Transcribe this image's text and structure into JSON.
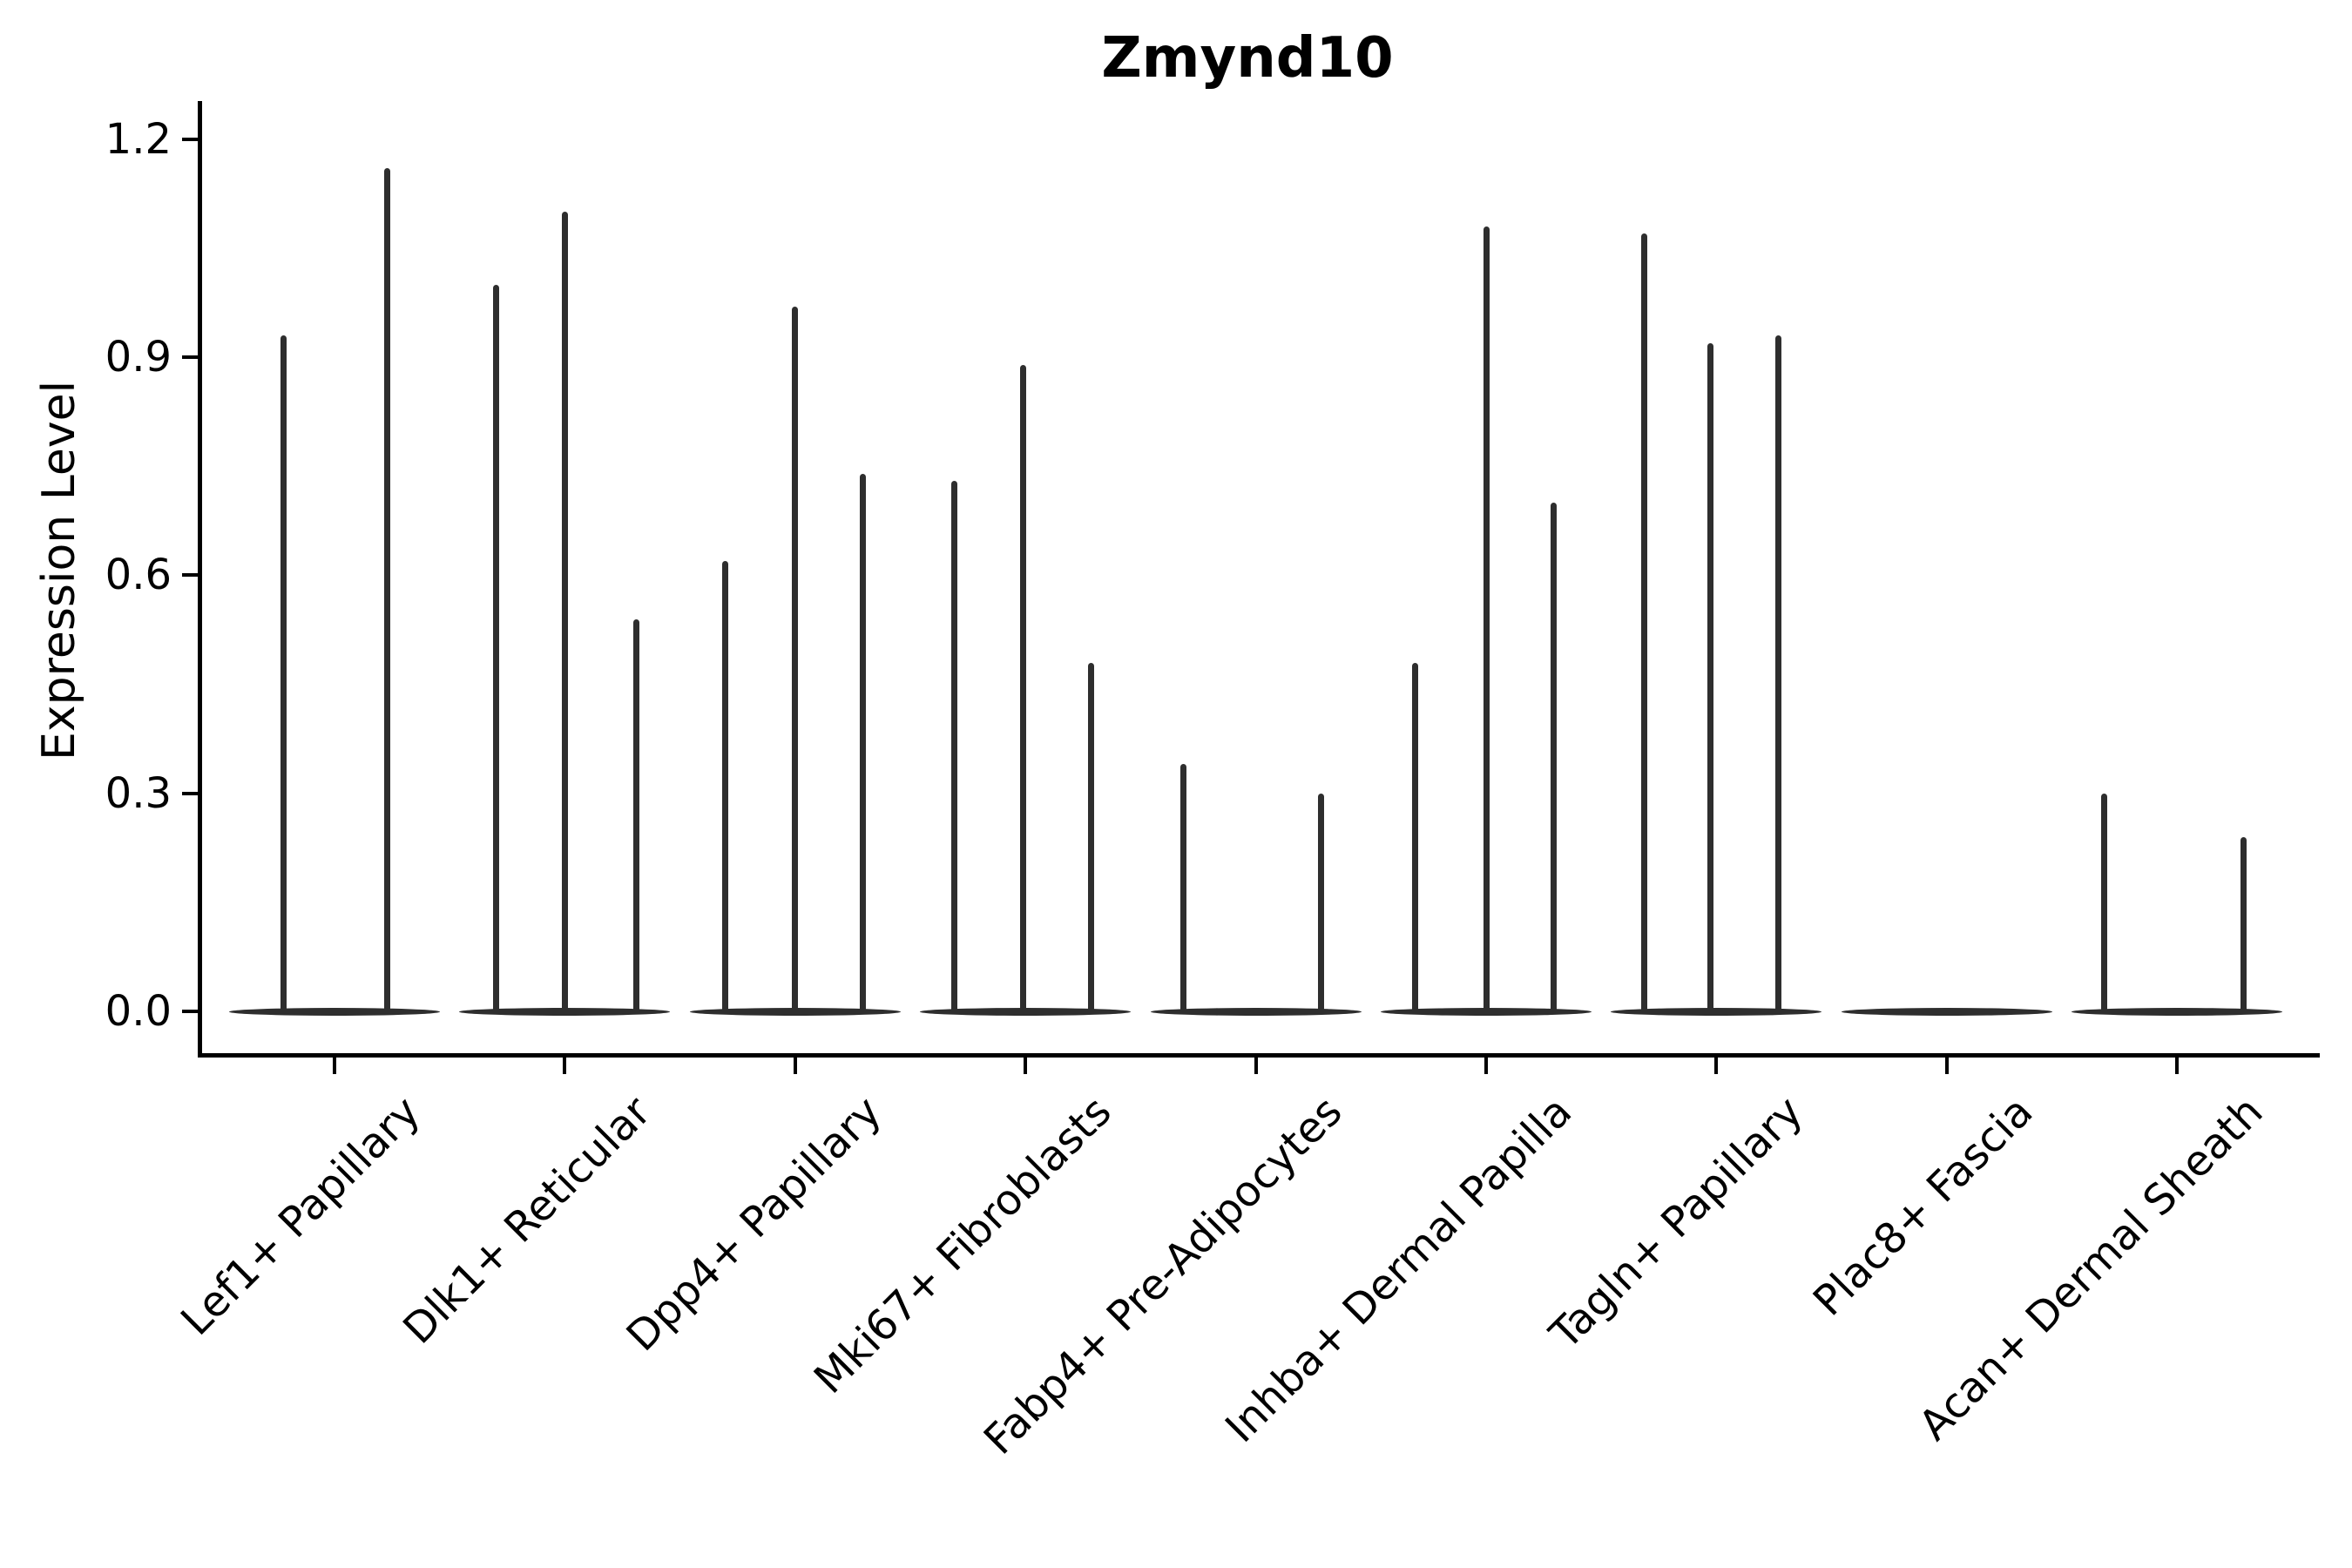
{
  "figure": {
    "title": "Zmynd10",
    "y_axis_label": "Expression Level"
  },
  "y_axis": {
    "tick_labels": [
      "0.0",
      "0.3",
      "0.6",
      "0.9",
      "1.2"
    ]
  },
  "x_axis": {
    "categories": [
      "Lef1+ Papillary",
      "Dlk1+ Reticular",
      "Dpp4+ Papillary",
      "Mki67+ Fibroblasts",
      "Fabp4+ Pre-Adipocytes",
      "Inhba+ Dermal Papilla",
      "Tagln+ Papillary",
      "Plac8+ Fascia",
      "Acan+ Dermal Sheath"
    ]
  },
  "chart_data": {
    "type": "violin",
    "title": "Zmynd10",
    "xlabel": "",
    "ylabel": "Expression Level",
    "ylim": [
      0,
      1.2
    ],
    "y_ticks": [
      0.0,
      0.3,
      0.6,
      0.9,
      1.2
    ],
    "grid": false,
    "legend": "none",
    "violin_color": "#2e2e2e",
    "base_value": 0,
    "description": "Violin plot of Zmynd10 expression; each cluster shows 2-3 very thin violins whose mass sits at 0 with narrow spikes reaching the max expression value.",
    "categories": [
      "Lef1+ Papillary",
      "Dlk1+ Reticular",
      "Dpp4+ Papillary",
      "Mki67+ Fibroblasts",
      "Fabp4+ Pre-Adipocytes",
      "Inhba+ Dermal Papilla",
      "Tagln+ Papillary",
      "Plac8+ Fascia",
      "Acan+ Dermal Sheath"
    ],
    "groups": [
      {
        "category": "Lef1+ Papillary",
        "violins": [
          {
            "pos": -0.22,
            "max": 0.93
          },
          {
            "pos": 0.23,
            "max": 1.16
          }
        ]
      },
      {
        "category": "Dlk1+ Reticular",
        "violins": [
          {
            "pos": -0.3,
            "max": 1.0
          },
          {
            "pos": 0.0,
            "max": 1.1
          },
          {
            "pos": 0.31,
            "max": 0.54
          }
        ]
      },
      {
        "category": "Dpp4+ Papillary",
        "violins": [
          {
            "pos": -0.305,
            "max": 0.62
          },
          {
            "pos": 0.0,
            "max": 0.97
          },
          {
            "pos": 0.295,
            "max": 0.74
          }
        ]
      },
      {
        "category": "Mki67+ Fibroblasts",
        "violins": [
          {
            "pos": -0.31,
            "max": 0.73
          },
          {
            "pos": -0.01,
            "max": 0.89
          },
          {
            "pos": 0.285,
            "max": 0.48
          }
        ]
      },
      {
        "category": "Fabp4+ Pre-Adipocytes",
        "violins": [
          {
            "pos": -0.315,
            "max": 0.34
          },
          {
            "pos": 0.285,
            "max": 0.3
          }
        ]
      },
      {
        "category": "Inhba+ Dermal Papilla",
        "violins": [
          {
            "pos": -0.31,
            "max": 0.48
          },
          {
            "pos": 0.0,
            "max": 1.08
          },
          {
            "pos": 0.295,
            "max": 0.7
          }
        ]
      },
      {
        "category": "Tagln+ Papillary",
        "violins": [
          {
            "pos": -0.315,
            "max": 1.07
          },
          {
            "pos": -0.025,
            "max": 0.92
          },
          {
            "pos": 0.27,
            "max": 0.93
          }
        ]
      },
      {
        "category": "Plac8+ Fascia",
        "violins": []
      },
      {
        "category": "Acan+ Dermal Sheath",
        "violins": [
          {
            "pos": -0.315,
            "max": 0.3
          },
          {
            "pos": 0.29,
            "max": 0.24
          }
        ]
      }
    ]
  }
}
